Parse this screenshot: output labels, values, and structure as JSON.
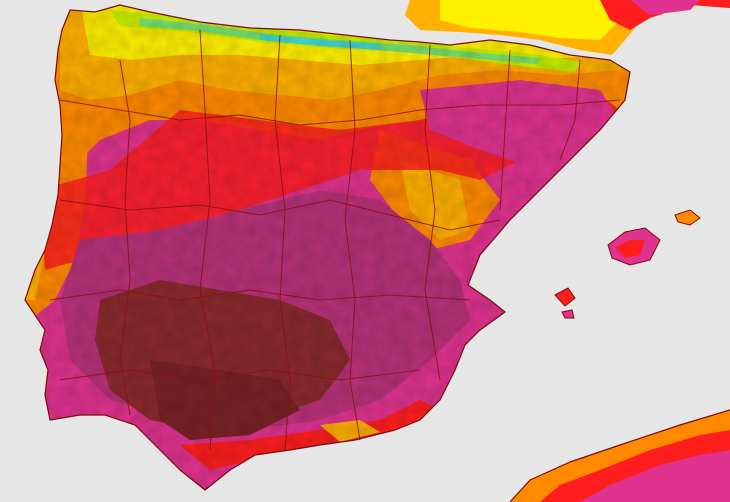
{
  "map": {
    "colors": {
      "sea": "#e6e6e6",
      "extreme": "#8b2a2e",
      "very_hot": "#b8327a",
      "hot": "#e0338f",
      "warm_red": "#ff1e1e",
      "orange": "#ff8a00",
      "amber": "#ffb000",
      "yellow": "#fff000",
      "lime": "#c8f000",
      "green": "#78e070",
      "cyan": "#40d8d0",
      "border": "#8a1010"
    },
    "icon": "temperature-map"
  }
}
